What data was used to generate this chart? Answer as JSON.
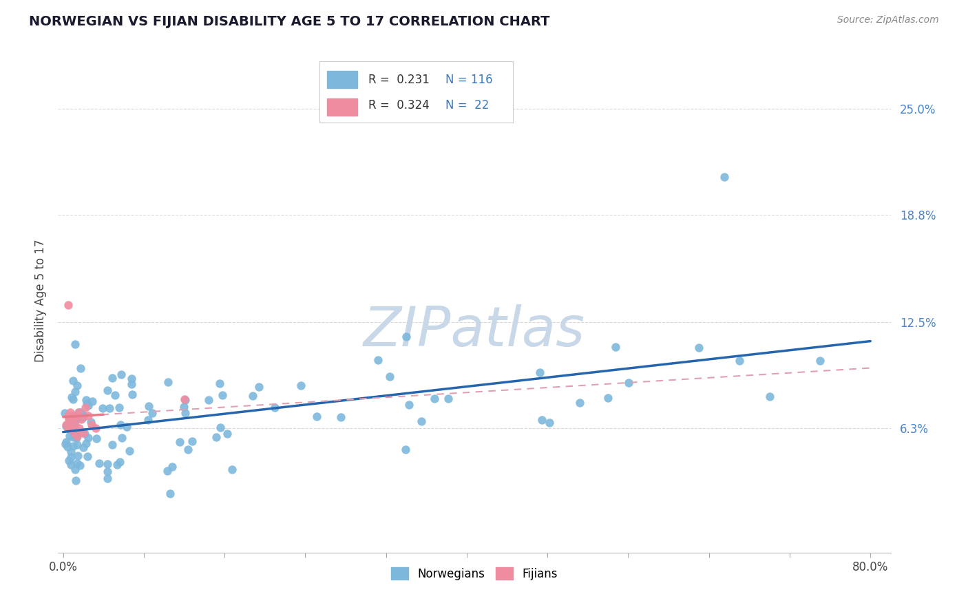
{
  "title": "NORWEGIAN VS FIJIAN DISABILITY AGE 5 TO 17 CORRELATION CHART",
  "source_text": "Source: ZipAtlas.com",
  "ylabel": "Disability Age 5 to 17",
  "xlim": [
    -0.005,
    0.82
  ],
  "ylim": [
    -0.01,
    0.285
  ],
  "yticks": [
    0.063,
    0.125,
    0.188,
    0.25
  ],
  "ytick_labels": [
    "6.3%",
    "12.5%",
    "18.8%",
    "25.0%"
  ],
  "xtick_positions": [
    0.0,
    0.08,
    0.16,
    0.24,
    0.32,
    0.4,
    0.48,
    0.56,
    0.64,
    0.72,
    0.8
  ],
  "norwegian_color": "#7db8dc",
  "fijian_color": "#f08ca0",
  "norwegian_line_color": "#2565ae",
  "fijian_line_color": "#e87a8a",
  "fijian_dashed_color": "#e0a0b0",
  "watermark_color": "#c8d8e8",
  "legend_nor_r": "R =  0.231",
  "legend_nor_n": "N = 116",
  "legend_fij_r": "R =  0.324",
  "legend_fij_n": "N =  22",
  "nor_label": "Norwegians",
  "fij_label": "Fijians",
  "background_color": "#ffffff",
  "title_color": "#1a1a2e",
  "source_color": "#888888",
  "ylabel_color": "#444444",
  "ytick_color": "#4a85cc",
  "xtick_color": "#444444",
  "grid_color": "#d8d8d8",
  "title_fontsize": 14,
  "axis_fontsize": 12,
  "legend_fontsize": 12
}
